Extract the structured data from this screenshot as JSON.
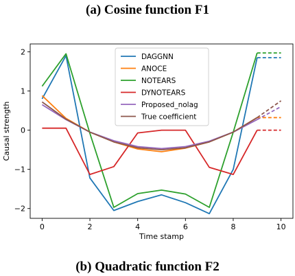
{
  "captions": {
    "top": "(a) Cosine function F1",
    "bottom": "(b) Quadratic function F2"
  },
  "chart_data": {
    "type": "line",
    "xlabel": "Time stamp",
    "ylabel": "Causal strength",
    "xlim": [
      -0.5,
      10.5
    ],
    "ylim": [
      -2.25,
      2.2
    ],
    "xticks": [
      0,
      2,
      4,
      6,
      8,
      10
    ],
    "yticks": [
      -2,
      -1,
      0,
      1,
      2
    ],
    "tick_labels": {
      "x": [
        "0",
        "2",
        "4",
        "6",
        "8",
        "10"
      ],
      "y": [
        "−2",
        "−1",
        "0",
        "1",
        "2"
      ]
    },
    "grid": false,
    "legend": "top-center",
    "x": [
      0,
      1,
      2,
      3,
      4,
      5,
      6,
      7,
      8,
      9
    ],
    "forecast_x": [
      9,
      10
    ],
    "series": [
      {
        "name": "DAGGNN",
        "color": "#1f77b4",
        "values": [
          0.8,
          1.9,
          -1.22,
          -2.05,
          -1.82,
          -1.65,
          -1.85,
          -2.13,
          -1.0,
          1.85
        ],
        "forecast": [
          1.85,
          1.85
        ]
      },
      {
        "name": "ANOCE",
        "color": "#ff7f0e",
        "values": [
          0.88,
          0.3,
          -0.05,
          -0.3,
          -0.48,
          -0.55,
          -0.46,
          -0.3,
          -0.05,
          0.32
        ],
        "forecast": [
          0.32,
          0.32
        ]
      },
      {
        "name": "NOTEARS",
        "color": "#2ca02c",
        "values": [
          1.12,
          1.95,
          -0.08,
          -1.97,
          -1.62,
          -1.53,
          -1.63,
          -1.97,
          -0.05,
          1.97
        ],
        "forecast": [
          1.97,
          1.97
        ]
      },
      {
        "name": "DYNOTEARS",
        "color": "#d62728",
        "values": [
          0.05,
          0.05,
          -1.13,
          -0.93,
          -0.07,
          0.0,
          0.0,
          -0.95,
          -1.13,
          0.0
        ],
        "forecast": [
          0.0,
          0.0
        ]
      },
      {
        "name": "Proposed_nolag",
        "color": "#9467bd",
        "values": [
          0.65,
          0.27,
          -0.05,
          -0.27,
          -0.42,
          -0.47,
          -0.42,
          -0.28,
          -0.05,
          0.27
        ],
        "forecast": [
          0.27,
          0.6
        ]
      },
      {
        "name": "True coefficient",
        "color": "#8c564b",
        "values": [
          0.72,
          0.28,
          -0.05,
          -0.3,
          -0.45,
          -0.5,
          -0.45,
          -0.3,
          -0.05,
          0.32
        ],
        "forecast": [
          0.32,
          0.75
        ]
      }
    ]
  }
}
